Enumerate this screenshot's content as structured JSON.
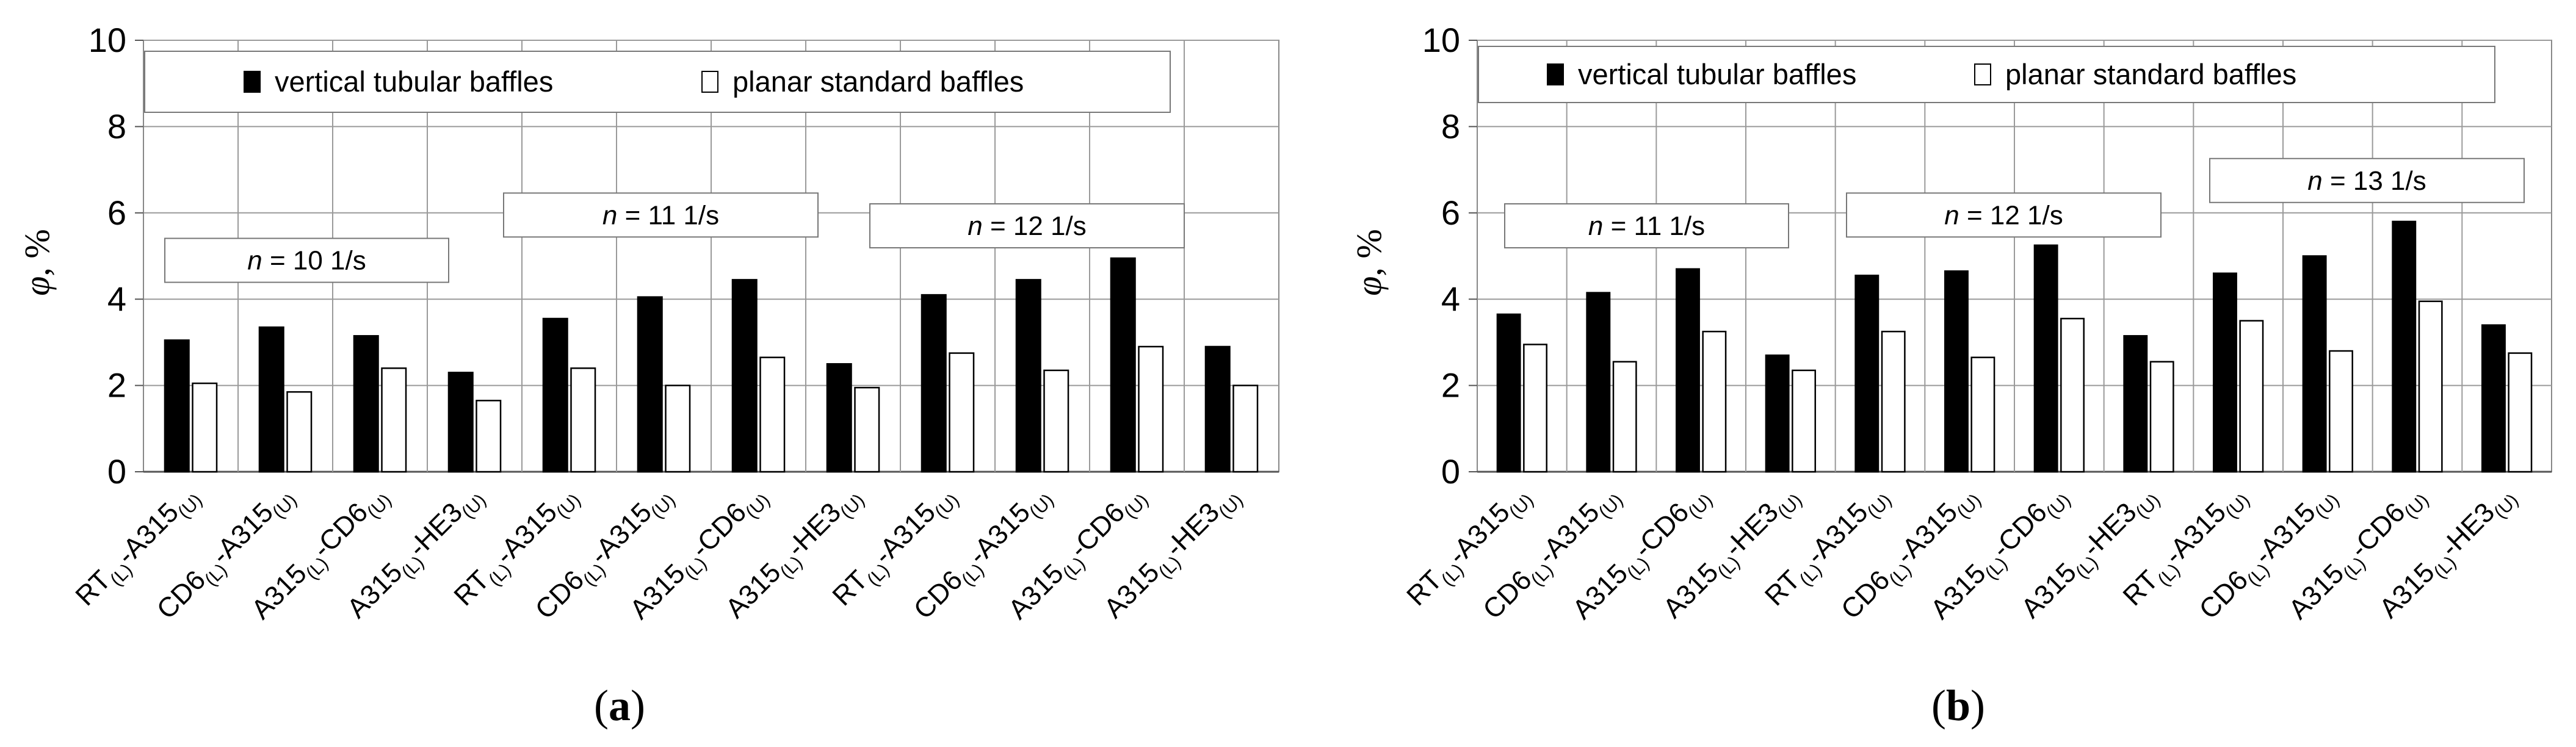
{
  "chart_data": [
    {
      "type": "bar",
      "panel_label": "a",
      "ylabel_symbol": "φ",
      "ylabel_unit": ", %",
      "ylim": [
        0,
        10
      ],
      "yticks": [
        0,
        2,
        4,
        6,
        8,
        10
      ],
      "grid": true,
      "legend": {
        "position": "top",
        "entries": [
          "vertical tubular baffles",
          "planar standard baffles"
        ]
      },
      "categories": [
        {
          "a": "RT",
          "as": "(L)",
          "b": "-A315",
          "bs": "(U)"
        },
        {
          "a": "CD6",
          "as": "(L)",
          "b": "-A315",
          "bs": "(U)"
        },
        {
          "a": "A315",
          "as": "(L)",
          "b": "-CD6",
          "bs": "(U)"
        },
        {
          "a": "A315",
          "as": "(L)",
          "b": "-HE3",
          "bs": "(U)"
        },
        {
          "a": "RT",
          "as": "(L)",
          "b": "-A315",
          "bs": "(U)"
        },
        {
          "a": "CD6",
          "as": "(L)",
          "b": "-A315",
          "bs": "(U)"
        },
        {
          "a": "A315",
          "as": "(L)",
          "b": "-CD6",
          "bs": "(U)"
        },
        {
          "a": "A315",
          "as": "(L)",
          "b": "-HE3",
          "bs": "(U)"
        },
        {
          "a": "RT",
          "as": "(L)",
          "b": "-A315",
          "bs": "(U)"
        },
        {
          "a": "CD6",
          "as": "(L)",
          "b": "-A315",
          "bs": "(U)"
        },
        {
          "a": "A315",
          "as": "(L)",
          "b": "-CD6",
          "bs": "(U)"
        },
        {
          "a": "A315",
          "as": "(L)",
          "b": "-HE3",
          "bs": "(U)"
        }
      ],
      "series": [
        {
          "name": "vertical tubular baffles",
          "color": "#000000",
          "values": [
            3.05,
            3.35,
            3.15,
            2.3,
            3.55,
            4.05,
            4.45,
            2.5,
            4.1,
            4.45,
            4.95,
            2.9
          ]
        },
        {
          "name": "planar standard baffles",
          "color": "#ffffff",
          "values": [
            2.05,
            1.85,
            2.4,
            1.65,
            2.4,
            2.0,
            2.65,
            1.95,
            2.75,
            2.35,
            2.9,
            2.0
          ]
        }
      ],
      "annotations": [
        {
          "var": "n",
          "text": " = 10 1/s",
          "y": 4.9
        },
        {
          "var": "n",
          "text": " = 11 1/s",
          "y": 5.95
        },
        {
          "var": "n",
          "text": " = 12 1/s",
          "y": 5.7
        }
      ]
    },
    {
      "type": "bar",
      "panel_label": "b",
      "ylabel_symbol": "φ",
      "ylabel_unit": ", %",
      "ylim": [
        0,
        10
      ],
      "yticks": [
        0,
        2,
        4,
        6,
        8,
        10
      ],
      "grid": true,
      "legend": {
        "position": "top",
        "entries": [
          "vertical tubular baffles",
          "planar standard baffles"
        ]
      },
      "categories": [
        {
          "a": "RT",
          "as": "(L)",
          "b": "-A315",
          "bs": "(U)"
        },
        {
          "a": "CD6",
          "as": "(L)",
          "b": "-A315",
          "bs": "(U)"
        },
        {
          "a": "A315",
          "as": "(L)",
          "b": "-CD6",
          "bs": "(U)"
        },
        {
          "a": "A315",
          "as": "(L)",
          "b": "-HE3",
          "bs": "(U)"
        },
        {
          "a": "RT",
          "as": "(L)",
          "b": "-A315",
          "bs": "(U)"
        },
        {
          "a": "CD6",
          "as": "(L)",
          "b": "-A315",
          "bs": "(U)"
        },
        {
          "a": "A315",
          "as": "(L)",
          "b": "-CD6",
          "bs": "(U)"
        },
        {
          "a": "A315",
          "as": "(L)",
          "b": "-HE3",
          "bs": "(U)"
        },
        {
          "a": "RT",
          "as": "(L)",
          "b": "-A315",
          "bs": "(U)"
        },
        {
          "a": "CD6",
          "as": "(L)",
          "b": "-A315",
          "bs": "(U)"
        },
        {
          "a": "A315",
          "as": "(L)",
          "b": "-CD6",
          "bs": "(U)"
        },
        {
          "a": "A315",
          "as": "(L)",
          "b": "-HE3",
          "bs": "(U)"
        }
      ],
      "series": [
        {
          "name": "vertical tubular baffles",
          "color": "#000000",
          "values": [
            3.65,
            4.15,
            4.7,
            2.7,
            4.55,
            4.65,
            5.25,
            3.15,
            4.6,
            5.0,
            5.8,
            3.4
          ]
        },
        {
          "name": "planar standard baffles",
          "color": "#ffffff",
          "values": [
            2.95,
            2.55,
            3.25,
            2.35,
            3.25,
            2.65,
            3.55,
            2.55,
            3.5,
            2.8,
            3.95,
            2.75
          ]
        }
      ],
      "annotations": [
        {
          "var": "n",
          "text": " = 11 1/s",
          "y": 5.7
        },
        {
          "var": "n",
          "text": " = 12 1/s",
          "y": 5.95
        },
        {
          "var": "n",
          "text": " = 13 1/s",
          "y": 6.75
        }
      ]
    }
  ]
}
